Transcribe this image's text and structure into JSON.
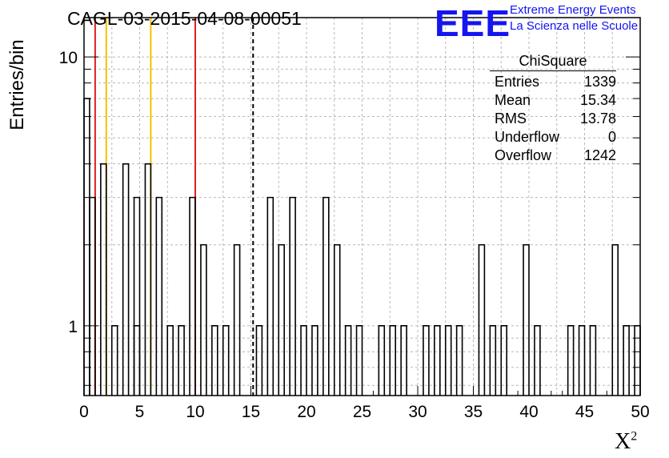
{
  "title": "CAGL-03-2015-04-08-00051",
  "logo": {
    "mark": "EEE",
    "line1": "Extreme Energy Events",
    "line2": "La Scienza nelle Scuole",
    "color": "#1515f0"
  },
  "axes": {
    "xlabel": "X",
    "xlabel_sup": "2",
    "ylabel": "Entries/bin"
  },
  "stats": {
    "name": "ChiSquare",
    "rows": [
      {
        "label": "Entries",
        "value": "1339"
      },
      {
        "label": "Mean",
        "value": "15.34"
      },
      {
        "label": "RMS",
        "value": "13.78"
      },
      {
        "label": "Underflow",
        "value": "0"
      },
      {
        "label": "Overflow",
        "value": "1242"
      }
    ]
  },
  "chart_data": {
    "type": "histogram",
    "x_range": [
      0,
      50
    ],
    "y_scale": "log",
    "y_range": [
      0.55,
      14
    ],
    "bin_width": 0.5,
    "x_ticks": [
      0,
      5,
      10,
      15,
      20,
      25,
      30,
      35,
      40,
      45,
      50
    ],
    "y_ticks": [
      1,
      10
    ],
    "grid": true,
    "bins": [
      [
        0,
        7
      ],
      [
        0.5,
        3
      ],
      [
        1.5,
        4
      ],
      [
        2.5,
        1
      ],
      [
        3.5,
        4
      ],
      [
        4.5,
        1
      ],
      [
        4.5,
        3
      ],
      [
        5.5,
        4
      ],
      [
        6.5,
        3
      ],
      [
        7.5,
        1
      ],
      [
        8.5,
        1
      ],
      [
        9.5,
        3
      ],
      [
        10.5,
        2
      ],
      [
        11.5,
        1
      ],
      [
        12.5,
        1
      ],
      [
        13.5,
        2
      ],
      [
        15.5,
        1
      ],
      [
        16.5,
        3
      ],
      [
        17.5,
        2
      ],
      [
        18.5,
        3
      ],
      [
        19.5,
        1
      ],
      [
        20.5,
        1
      ],
      [
        21.5,
        3
      ],
      [
        22.5,
        2
      ],
      [
        23.5,
        1
      ],
      [
        24.5,
        1
      ],
      [
        26.5,
        1
      ],
      [
        27.5,
        1
      ],
      [
        28.5,
        1
      ],
      [
        30.5,
        1
      ],
      [
        31.5,
        1
      ],
      [
        32.5,
        1
      ],
      [
        33.5,
        1
      ],
      [
        35.5,
        2
      ],
      [
        36.5,
        1
      ],
      [
        37.5,
        1
      ],
      [
        39.5,
        2
      ],
      [
        40.5,
        1
      ],
      [
        43.5,
        1
      ],
      [
        44.5,
        1
      ],
      [
        45.5,
        1
      ],
      [
        47.5,
        2
      ],
      [
        48.5,
        1
      ],
      [
        49.5,
        1
      ]
    ],
    "vlines": [
      {
        "x": 1,
        "color": "#e02020",
        "style": "solid"
      },
      {
        "x": 2,
        "color": "#f2c200",
        "style": "solid"
      },
      {
        "x": 6,
        "color": "#f2c200",
        "style": "solid"
      },
      {
        "x": 10,
        "color": "#e02020",
        "style": "solid"
      },
      {
        "x": 15.2,
        "color": "#000000",
        "style": "dashed"
      }
    ]
  }
}
